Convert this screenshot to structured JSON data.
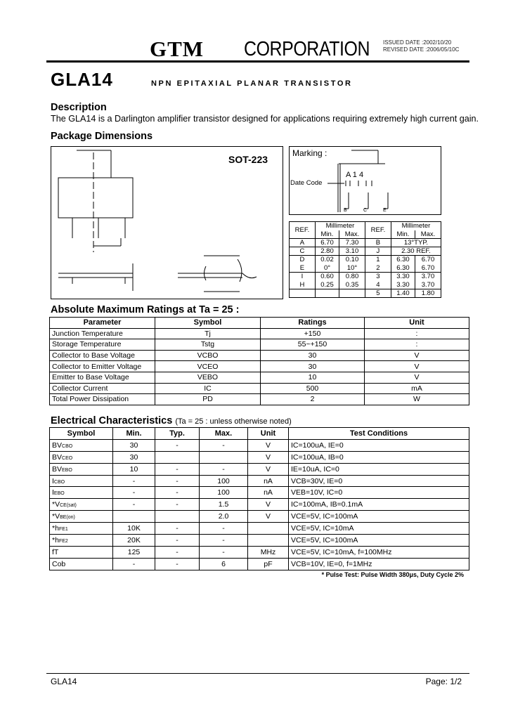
{
  "header": {
    "brand": "GTM",
    "corporation": "CORPORATION",
    "issued": "ISSUED DATE  :2002/10/20",
    "revised": "REVISED DATE :2006/05/10C"
  },
  "model": "GLA14",
  "subtitle": "NPN EPITAXIAL PLANAR TRANSISTOR",
  "description": {
    "heading": "Description",
    "text": "The GLA14 is a Darlington amplifier transistor designed for applications requiring extremely high current gain."
  },
  "package": {
    "heading": "Package Dimensions",
    "name": "SOT-223",
    "marking_label": "Marking :",
    "marking_text": "A 1 4",
    "date_code": "Date Code",
    "pins": [
      "B",
      "C",
      "E"
    ]
  },
  "dimensions": {
    "ref": "REF.",
    "unit": "Millimeter",
    "min": "Min.",
    "max": "Max.",
    "left": [
      [
        "A",
        "6.70",
        "7.30"
      ],
      [
        "C",
        "2.80",
        "3.10"
      ],
      [
        "D",
        "0.02",
        "0.10"
      ],
      [
        "E",
        "0°",
        "10°"
      ],
      [
        "I",
        "0.60",
        "0.80"
      ],
      [
        "H",
        "0.25",
        "0.35"
      ],
      [
        "",
        "",
        ""
      ]
    ],
    "right": [
      [
        "B",
        "13°TYP.",
        ""
      ],
      [
        "J",
        "2.30 REF.",
        ""
      ],
      [
        "1",
        "6.30",
        "6.70"
      ],
      [
        "2",
        "6.30",
        "6.70"
      ],
      [
        "3",
        "3.30",
        "3.70"
      ],
      [
        "4",
        "3.30",
        "3.70"
      ],
      [
        "5",
        "1.40",
        "1.80"
      ]
    ]
  },
  "abs_max": {
    "heading": "Absolute Maximum Ratings at Ta = 25 :",
    "headers": [
      "Parameter",
      "Symbol",
      "Ratings",
      "Unit"
    ],
    "rows": [
      [
        "Junction Temperature",
        "Tj",
        "+150",
        ":"
      ],
      [
        "Storage Temperature",
        "Tstg",
        "55~+150",
        ":"
      ],
      [
        "Collector to Base Voltage",
        "VCBO",
        "30",
        "V"
      ],
      [
        "Collector to Emitter Voltage",
        "VCEO",
        "30",
        "V"
      ],
      [
        "Emitter to Base Voltage",
        "VEBO",
        "10",
        "V"
      ],
      [
        "Collector Current",
        "IC",
        "500",
        "mA"
      ],
      [
        "Total Power Dissipation",
        "PD",
        "2",
        "W"
      ]
    ]
  },
  "electrical": {
    "heading": "Electrical Characteristics",
    "note": "(Ta = 25 :  unless otherwise noted)",
    "headers": [
      "Symbol",
      "Min.",
      "Typ.",
      "Max.",
      "Unit",
      "Test Conditions"
    ],
    "rows": [
      {
        "sym": "BV",
        "sub": "CBO",
        "min": "30",
        "typ": "-",
        "max": "-",
        "unit": "V",
        "cond": "IC=100uA, IE=0"
      },
      {
        "sym": "BV",
        "sub": "CEO",
        "min": "30",
        "typ": "",
        "max": "",
        "unit": "V",
        "cond": "IC=100uA, IB=0"
      },
      {
        "sym": "BV",
        "sub": "EBO",
        "min": "10",
        "typ": "-",
        "max": "-",
        "unit": "V",
        "cond": "IE=10uA, IC=0"
      },
      {
        "sym": "I",
        "sub": "CBO",
        "min": "-",
        "typ": "-",
        "max": "100",
        "unit": "nA",
        "cond": "VCB=30V, IE=0"
      },
      {
        "sym": "I",
        "sub": "EBO",
        "min": "-",
        "typ": "-",
        "max": "100",
        "unit": "nA",
        "cond": "VEB=10V, IC=0"
      },
      {
        "sym": "*V",
        "sub": "CE(sat)",
        "min": "-",
        "typ": "-",
        "max": "1.5",
        "unit": "V",
        "cond": "IC=100mA, IB=0.1mA"
      },
      {
        "sym": "*V",
        "sub": "BE(on)",
        "min": "",
        "typ": "",
        "max": "2.0",
        "unit": "V",
        "cond": "VCE=5V, IC=100mA"
      },
      {
        "sym": "*h",
        "sub": "FE1",
        "min": "10K",
        "typ": "-",
        "max": "-",
        "unit": "",
        "cond": "VCE=5V, IC=10mA"
      },
      {
        "sym": "*h",
        "sub": "FE2",
        "min": "20K",
        "typ": "-",
        "max": "-",
        "unit": "",
        "cond": "VCE=5V, IC=100mA"
      },
      {
        "sym": "fT",
        "sub": "",
        "min": "125",
        "typ": "-",
        "max": "-",
        "unit": "MHz",
        "cond": "VCE=5V, IC=10mA, f=100MHz"
      },
      {
        "sym": "Cob",
        "sub": "",
        "min": "-",
        "typ": "-",
        "max": "6",
        "unit": "pF",
        "cond": "VCB=10V, IE=0, f=1MHz"
      }
    ],
    "footnote": "* Pulse Test: Pulse Width   380μs, Duty Cycle   2%"
  },
  "footer": {
    "model": "GLA14",
    "page": "Page: 1/2"
  }
}
